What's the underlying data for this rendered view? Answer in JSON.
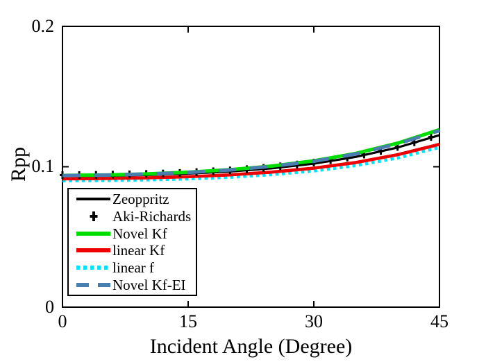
{
  "figure": {
    "background": "#ffffff",
    "axes_color": "#000000"
  },
  "chart_data": {
    "type": "line",
    "title": "",
    "xlabel": "Incident Angle (Degree)",
    "ylabel": "Rpp",
    "xlim": [
      0,
      45
    ],
    "ylim": [
      0,
      0.2
    ],
    "xticks": [
      0,
      15,
      30,
      45
    ],
    "yticks": [
      0,
      0.1,
      0.2
    ],
    "xtick_labels": [
      "0",
      "15",
      "30",
      "45"
    ],
    "ytick_labels": [
      "0",
      "0.1",
      "0.2"
    ],
    "grid": false,
    "legend_position": "lower-left-inside",
    "render_order": [
      4,
      3,
      0,
      1,
      2,
      5
    ],
    "series": [
      {
        "name": "Zeoppritz",
        "id": "zeoppritz",
        "color": "#000000",
        "style": "solid",
        "width": 3.2,
        "x": [
          0,
          5,
          10,
          15,
          20,
          25,
          30,
          35,
          40,
          45
        ],
        "values": [
          0.0933,
          0.0935,
          0.0941,
          0.0951,
          0.0966,
          0.0989,
          0.1022,
          0.107,
          0.1137,
          0.1225
        ]
      },
      {
        "name": "Aki-Richards",
        "id": "aki-richards",
        "color": "#000000",
        "style": "plus-markers",
        "width": 3,
        "x": [
          0,
          2,
          4,
          6,
          8,
          10,
          12,
          14,
          16,
          18,
          20,
          22,
          24,
          26,
          28,
          30,
          32,
          34,
          36,
          38,
          40,
          42,
          44
        ],
        "values": [
          0.0941,
          0.0941,
          0.0942,
          0.0944,
          0.0946,
          0.0949,
          0.0952,
          0.0956,
          0.0962,
          0.0968,
          0.0974,
          0.0983,
          0.0992,
          0.1003,
          0.1016,
          0.103,
          0.1047,
          0.1065,
          0.1087,
          0.1112,
          0.1141,
          0.1174,
          0.1212
        ]
      },
      {
        "name": "Novel Kf",
        "id": "novel-kf",
        "color": "#00dd00",
        "style": "solid",
        "width": 5,
        "x": [
          0,
          5,
          10,
          15,
          20,
          25,
          30,
          35,
          40,
          45
        ],
        "values": [
          0.0938,
          0.0941,
          0.0949,
          0.0961,
          0.0979,
          0.1005,
          0.1042,
          0.1095,
          0.1168,
          0.1264
        ]
      },
      {
        "name": "linear Kf",
        "id": "linear-kf",
        "color": "#ee0000",
        "style": "solid",
        "width": 4.6,
        "x": [
          0,
          5,
          10,
          15,
          20,
          25,
          30,
          35,
          40,
          45
        ],
        "values": [
          0.0914,
          0.0916,
          0.0921,
          0.0929,
          0.0942,
          0.0962,
          0.099,
          0.103,
          0.1086,
          0.116
        ]
      },
      {
        "name": "linear f",
        "id": "linear-f",
        "color": "#00e4ff",
        "style": "dotted",
        "width": 4.5,
        "dash": "4.5 4.8",
        "x": [
          0,
          5,
          10,
          15,
          20,
          25,
          30,
          35,
          40,
          45
        ],
        "values": [
          0.09,
          0.0902,
          0.0906,
          0.0913,
          0.0925,
          0.0944,
          0.097,
          0.1008,
          0.1062,
          0.1138
        ]
      },
      {
        "name": "Novel Kf-EI",
        "id": "novel-kf-ei",
        "color": "#4a7eb0",
        "style": "dashed",
        "width": 5,
        "dash": "25 20",
        "x": [
          0,
          5,
          10,
          15,
          20,
          25,
          30,
          35,
          40,
          45
        ],
        "values": [
          0.0937,
          0.094,
          0.0948,
          0.0959,
          0.0977,
          0.1003,
          0.1039,
          0.1091,
          0.1163,
          0.1257
        ]
      }
    ]
  }
}
